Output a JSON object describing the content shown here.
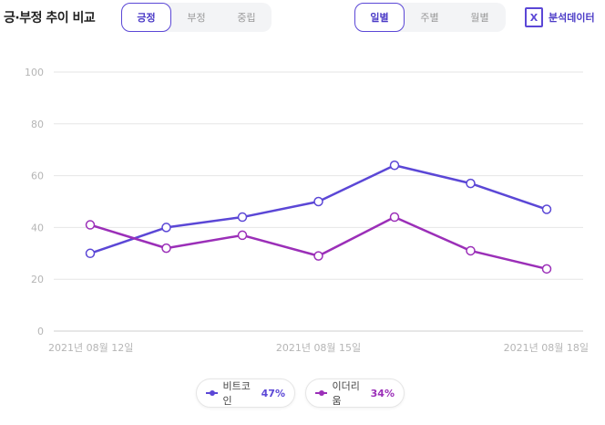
{
  "header": {
    "title": "긍·부정 추이 비교",
    "sentiment_tabs": [
      {
        "label": "긍정",
        "active": true
      },
      {
        "label": "부정",
        "active": false
      },
      {
        "label": "중립",
        "active": false
      }
    ],
    "period_tabs": [
      {
        "label": "일별",
        "active": true
      },
      {
        "label": "주별",
        "active": false
      },
      {
        "label": "월별",
        "active": false
      }
    ],
    "export": {
      "icon": "excel-icon",
      "icon_text": "X",
      "label": "분석데이터"
    }
  },
  "chart_data": {
    "type": "line",
    "x": [
      "2021-08-12",
      "2021-08-13",
      "2021-08-14",
      "2021-08-15",
      "2021-08-16",
      "2021-08-17",
      "2021-08-18"
    ],
    "x_tick_labels": [
      "2021년 08월 12일",
      "2021년 08월 15일",
      "2021년 08월 18일"
    ],
    "x_tick_dates": [
      "2021-08-12",
      "2021-08-15",
      "2021-08-18"
    ],
    "ylim": [
      0,
      100
    ],
    "y_ticks": [
      0,
      20,
      40,
      60,
      80,
      100
    ],
    "grid": true,
    "legend_position": "bottom-center",
    "series": [
      {
        "name": "비트코인",
        "summary": "47%",
        "color": "#5b47d6",
        "values": [
          30,
          40,
          44,
          50,
          64,
          57,
          47
        ]
      },
      {
        "name": "이더리움",
        "summary": "34%",
        "color": "#9b2fb8",
        "values": [
          41,
          32,
          37,
          29,
          44,
          31,
          24
        ]
      }
    ],
    "title": "",
    "xlabel": "",
    "ylabel": ""
  }
}
